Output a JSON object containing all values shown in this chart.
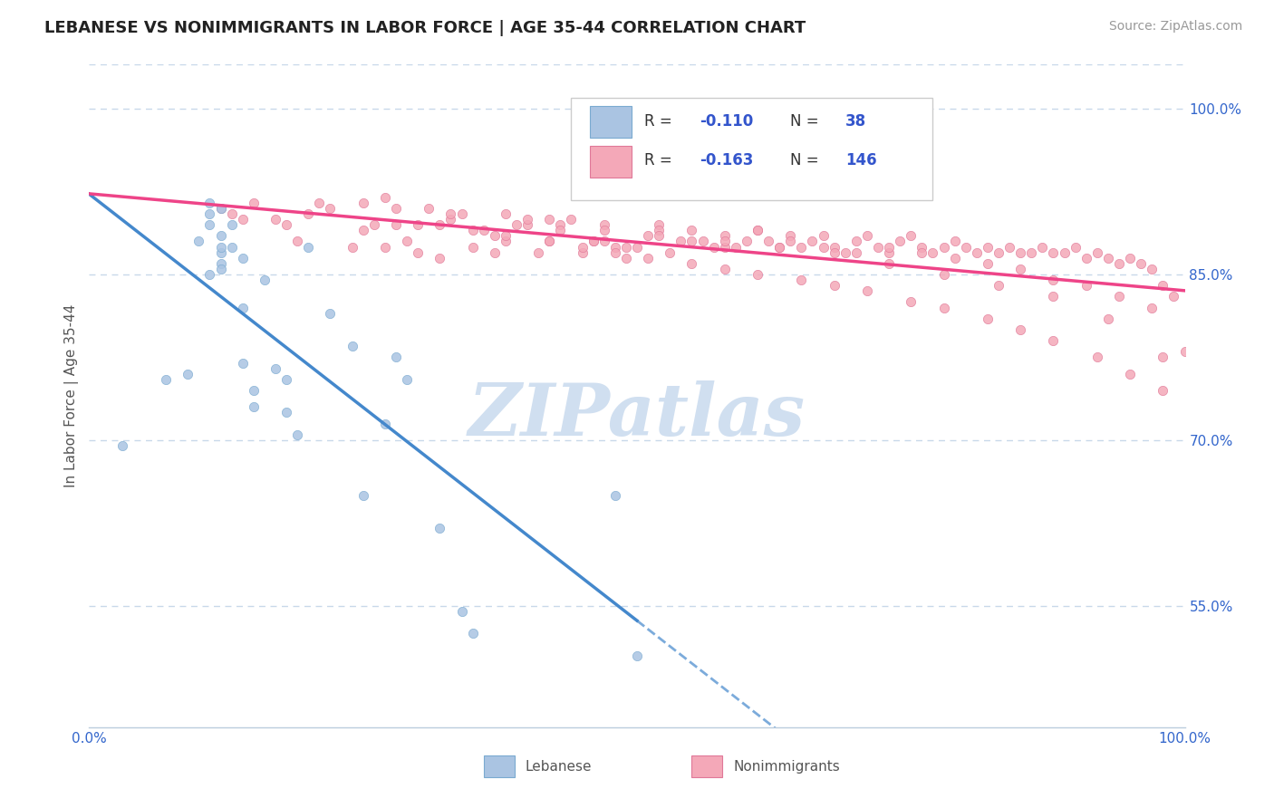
{
  "title": "LEBANESE VS NONIMMIGRANTS IN LABOR FORCE | AGE 35-44 CORRELATION CHART",
  "source_text": "Source: ZipAtlas.com",
  "ylabel": "In Labor Force | Age 35-44",
  "xlim": [
    0.0,
    1.0
  ],
  "ylim": [
    0.44,
    1.04
  ],
  "y_tick_values_right": [
    0.55,
    0.7,
    0.85,
    1.0
  ],
  "y_tick_labels_right": [
    "55.0%",
    "70.0%",
    "85.0%",
    "100.0%"
  ],
  "color_lebanese": "#aac4e2",
  "color_nonimmigrants": "#f4a8b8",
  "color_leb_edge": "#7aaad0",
  "color_non_edge": "#e07898",
  "color_leb_line": "#4488cc",
  "color_non_line": "#ee4488",
  "watermark_color": "#d0dff0",
  "background_color": "#ffffff",
  "grid_color": "#c8d8ea",
  "lebanese_x": [
    0.03,
    0.07,
    0.09,
    0.1,
    0.11,
    0.11,
    0.11,
    0.11,
    0.12,
    0.12,
    0.12,
    0.12,
    0.12,
    0.12,
    0.13,
    0.13,
    0.14,
    0.14,
    0.14,
    0.15,
    0.15,
    0.16,
    0.17,
    0.18,
    0.18,
    0.19,
    0.2,
    0.22,
    0.24,
    0.25,
    0.27,
    0.28,
    0.29,
    0.32,
    0.34,
    0.35,
    0.48,
    0.5
  ],
  "lebanese_y": [
    0.695,
    0.755,
    0.76,
    0.88,
    0.85,
    0.915,
    0.895,
    0.905,
    0.87,
    0.875,
    0.885,
    0.91,
    0.86,
    0.855,
    0.875,
    0.895,
    0.82,
    0.77,
    0.865,
    0.73,
    0.745,
    0.845,
    0.765,
    0.725,
    0.755,
    0.705,
    0.875,
    0.815,
    0.785,
    0.65,
    0.715,
    0.775,
    0.755,
    0.62,
    0.545,
    0.525,
    0.65,
    0.505
  ],
  "nonimmigrants_x": [
    0.12,
    0.13,
    0.14,
    0.15,
    0.17,
    0.18,
    0.19,
    0.2,
    0.21,
    0.22,
    0.24,
    0.25,
    0.26,
    0.27,
    0.28,
    0.29,
    0.3,
    0.31,
    0.32,
    0.33,
    0.34,
    0.35,
    0.36,
    0.37,
    0.38,
    0.39,
    0.4,
    0.41,
    0.42,
    0.43,
    0.44,
    0.45,
    0.46,
    0.47,
    0.47,
    0.48,
    0.49,
    0.5,
    0.51,
    0.52,
    0.53,
    0.54,
    0.55,
    0.56,
    0.57,
    0.58,
    0.59,
    0.6,
    0.61,
    0.62,
    0.63,
    0.64,
    0.65,
    0.66,
    0.67,
    0.68,
    0.69,
    0.7,
    0.71,
    0.72,
    0.73,
    0.74,
    0.75,
    0.76,
    0.77,
    0.78,
    0.79,
    0.8,
    0.81,
    0.82,
    0.83,
    0.84,
    0.85,
    0.86,
    0.87,
    0.88,
    0.89,
    0.9,
    0.91,
    0.92,
    0.93,
    0.94,
    0.95,
    0.96,
    0.97,
    0.98,
    0.99,
    1.0,
    0.27,
    0.3,
    0.33,
    0.37,
    0.4,
    0.43,
    0.46,
    0.49,
    0.52,
    0.55,
    0.58,
    0.61,
    0.64,
    0.67,
    0.7,
    0.73,
    0.76,
    0.79,
    0.82,
    0.85,
    0.88,
    0.91,
    0.94,
    0.97,
    0.25,
    0.28,
    0.32,
    0.35,
    0.38,
    0.42,
    0.45,
    0.48,
    0.51,
    0.55,
    0.58,
    0.61,
    0.65,
    0.68,
    0.71,
    0.75,
    0.78,
    0.82,
    0.85,
    0.88,
    0.92,
    0.95,
    0.98,
    0.38,
    0.42,
    0.47,
    0.52,
    0.58,
    0.63,
    0.68,
    0.73,
    0.78,
    0.83,
    0.88,
    0.93,
    0.98
  ],
  "nonimmigrants_y": [
    0.91,
    0.905,
    0.9,
    0.915,
    0.9,
    0.895,
    0.88,
    0.905,
    0.915,
    0.91,
    0.875,
    0.89,
    0.895,
    0.875,
    0.895,
    0.88,
    0.87,
    0.91,
    0.865,
    0.9,
    0.905,
    0.875,
    0.89,
    0.87,
    0.88,
    0.895,
    0.895,
    0.87,
    0.88,
    0.895,
    0.9,
    0.87,
    0.88,
    0.895,
    0.88,
    0.875,
    0.865,
    0.875,
    0.885,
    0.895,
    0.87,
    0.88,
    0.89,
    0.88,
    0.875,
    0.885,
    0.875,
    0.88,
    0.89,
    0.88,
    0.875,
    0.885,
    0.875,
    0.88,
    0.885,
    0.875,
    0.87,
    0.88,
    0.885,
    0.875,
    0.87,
    0.88,
    0.885,
    0.875,
    0.87,
    0.875,
    0.88,
    0.875,
    0.87,
    0.875,
    0.87,
    0.875,
    0.87,
    0.87,
    0.875,
    0.87,
    0.87,
    0.875,
    0.865,
    0.87,
    0.865,
    0.86,
    0.865,
    0.86,
    0.855,
    0.84,
    0.83,
    0.78,
    0.92,
    0.895,
    0.905,
    0.885,
    0.9,
    0.89,
    0.88,
    0.875,
    0.89,
    0.88,
    0.875,
    0.89,
    0.88,
    0.875,
    0.87,
    0.875,
    0.87,
    0.865,
    0.86,
    0.855,
    0.845,
    0.84,
    0.83,
    0.82,
    0.915,
    0.91,
    0.895,
    0.89,
    0.885,
    0.88,
    0.875,
    0.87,
    0.865,
    0.86,
    0.855,
    0.85,
    0.845,
    0.84,
    0.835,
    0.825,
    0.82,
    0.81,
    0.8,
    0.79,
    0.775,
    0.76,
    0.745,
    0.905,
    0.9,
    0.89,
    0.885,
    0.88,
    0.875,
    0.87,
    0.86,
    0.85,
    0.84,
    0.83,
    0.81,
    0.775
  ]
}
